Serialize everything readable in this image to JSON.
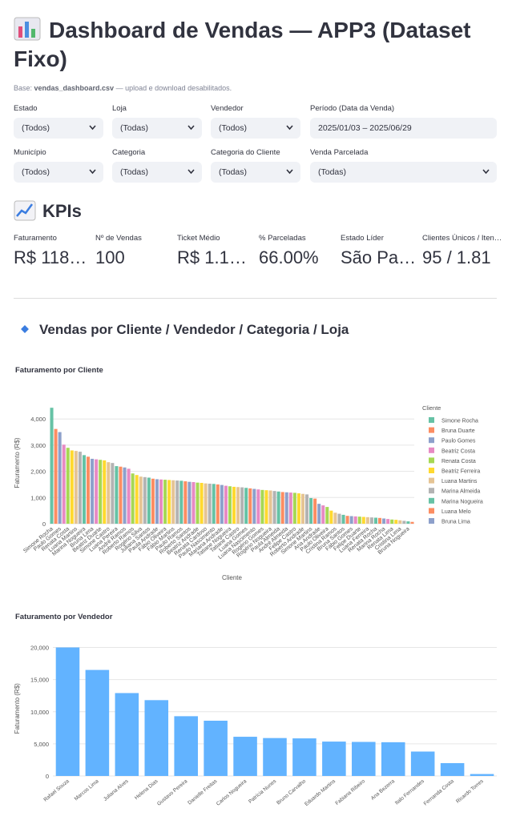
{
  "header": {
    "title": "Dashboard de Vendas — APP3 (Dataset Fixo)",
    "caption_prefix": "Base: ",
    "caption_file": "vendas_dashboard.csv",
    "caption_suffix": " — upload e download desabilitados."
  },
  "filters": [
    {
      "label": "Estado",
      "value": "(Todos)"
    },
    {
      "label": "Loja",
      "value": "(Todas)"
    },
    {
      "label": "Vendedor",
      "value": "(Todos)"
    },
    {
      "label": "Período (Data da Venda)",
      "value": "2025/01/03 – 2025/06/29"
    },
    {
      "label": "Município",
      "value": "(Todos)"
    },
    {
      "label": "Categoria",
      "value": "(Todas)"
    },
    {
      "label": "Categoria do Cliente",
      "value": "(Todas)"
    },
    {
      "label": "Venda Parcelada",
      "value": "(Todas)"
    }
  ],
  "kpis_title": "KPIs",
  "kpis": [
    {
      "label": "Faturamento",
      "value": "R$ 118…"
    },
    {
      "label": "Nº de Vendas",
      "value": "100"
    },
    {
      "label": "Ticket Médio",
      "value": "R$ 1.1…"
    },
    {
      "label": "% Parceladas",
      "value": "66.00%"
    },
    {
      "label": "Estado Líder",
      "value": "São Pa…"
    },
    {
      "label": "Clientes Únicos / Iten…",
      "value": "95 / 1.81"
    }
  ],
  "section_title": "Vendas por Cliente / Vendedor / Categoria / Loja",
  "chart_data": [
    {
      "type": "bar",
      "title": "Faturamento por Cliente",
      "x_label": "Cliente",
      "y_label": "Faturamento (R$)",
      "categories": [
        "Simone Rocha",
        "Bruna Duarte",
        "Paulo Gomes",
        "Beatriz Costa",
        "Renata Costa",
        "Beatriz Ferreira",
        "Luana Martins",
        "Marina Almeida",
        "Marina Nogueira",
        "Luana Melo",
        "Bruna Lima",
        null,
        "Beatriz Duarte",
        null,
        "Simone Castro",
        null,
        "Luana Pereira",
        null,
        "André Ramos",
        null,
        "Roberto Ramos",
        null,
        "Rogério Silva",
        null,
        "Juliana Santos",
        null,
        "Paula Andrade",
        null,
        "Fábio Oliveira",
        null,
        "Fábio Martins",
        null,
        "Paulo Ramos",
        null,
        "Roberto Santos",
        null,
        "Beatriz Andrade",
        null,
        "Renata Cardoso",
        null,
        "Paulo Nascimento",
        null,
        "Mariana Andrade",
        null,
        "Tatiane Nogueira",
        null,
        "Tatiane Castro",
        null,
        "Luana Gomes",
        null,
        "Luana Nascimento",
        null,
        "Rogério Gomes",
        null,
        "Rogério Nogueira",
        null,
        "Paula Almeida",
        null,
        "André Almeida",
        null,
        "Felipe Castro",
        null,
        "Roberto Andrade",
        null,
        "Simone Martins",
        null,
        "Ana Andrade",
        null,
        "Paulo Oliveira",
        null,
        "Cristina Ramos",
        null,
        "Bruna Santos",
        null,
        "Fábio Gomes",
        null,
        "Felipe Duarte",
        null,
        "Luana Ferreira",
        null,
        "Renata Rocha",
        null,
        "Marina Rocha",
        null,
        "Renata Lima",
        null,
        "Cristina Lima",
        null,
        "Bruna Nogueira",
        null
      ],
      "values": [
        4430,
        3620,
        3500,
        3020,
        2900,
        2800,
        2780,
        2750,
        2620,
        2560,
        2480,
        2460,
        2440,
        2420,
        2350,
        2320,
        2200,
        2180,
        2150,
        2100,
        1920,
        1860,
        1800,
        1780,
        1760,
        1720,
        1700,
        1690,
        1680,
        1670,
        1660,
        1650,
        1640,
        1620,
        1600,
        1590,
        1570,
        1560,
        1540,
        1530,
        1520,
        1500,
        1480,
        1450,
        1430,
        1410,
        1400,
        1390,
        1370,
        1350,
        1330,
        1310,
        1290,
        1280,
        1270,
        1250,
        1230,
        1210,
        1200,
        1190,
        1180,
        1160,
        1140,
        1120,
        980,
        960,
        760,
        700,
        640,
        500,
        420,
        380,
        340,
        300,
        290,
        280,
        270,
        260,
        250,
        240,
        230,
        220,
        200,
        180,
        160,
        150,
        130,
        110,
        90,
        70
      ],
      "palette": [
        "#66c2a5",
        "#fc8d62",
        "#8da0cb",
        "#e78ac3",
        "#a6d854",
        "#ffd92f",
        "#e5c494",
        "#b3b3b3"
      ],
      "legend": {
        "title": "Cliente",
        "entries": [
          "Simone Rocha",
          "Bruna Duarte",
          "Paulo Gomes",
          "Beatriz Costa",
          "Renata Costa",
          "Beatriz Ferreira",
          "Luana Martins",
          "Marina Almeida",
          "Marina Nogueira",
          "Luana Melo",
          "Bruna Lima"
        ]
      },
      "ylim": [
        0,
        4650
      ],
      "yticks": [
        0,
        {
          "value": 1000,
          "label": "1,000"
        },
        {
          "value": 2000,
          "label": "2,000"
        },
        {
          "value": 3000,
          "label": "3,000"
        },
        {
          "value": 4000,
          "label": "4,000"
        }
      ],
      "grid": true
    },
    {
      "type": "bar",
      "title": "Faturamento por Vendedor",
      "y_label": "Faturamento (R$)",
      "categories": [
        "Rafael Souza",
        "Marcos Lima",
        "Juliana Alves",
        "Helena Dias",
        "Gustavo Pereira",
        "Danielle Freitas",
        "Carlos Nogueira",
        "Patrícia Nunes",
        "Bruno Carvalho",
        "Eduardo Martins",
        "Fabiana Ribeiro",
        "Ana Bezerra",
        "Italo Fernandes",
        "Fernanda Costa",
        "Ricardo Torres"
      ],
      "values": [
        20000,
        16500,
        12900,
        11800,
        9300,
        8600,
        6100,
        5900,
        5850,
        5350,
        5300,
        5250,
        3800,
        2000,
        300
      ],
      "color": "#62b3ff",
      "ylim": [
        0,
        21000
      ],
      "yticks": [
        0,
        {
          "value": 5000,
          "label": "5,000"
        },
        {
          "value": 10000,
          "label": "10,000"
        },
        {
          "value": 15000,
          "label": "15,000"
        },
        {
          "value": 20000,
          "label": "20,000"
        }
      ],
      "grid": true
    }
  ]
}
